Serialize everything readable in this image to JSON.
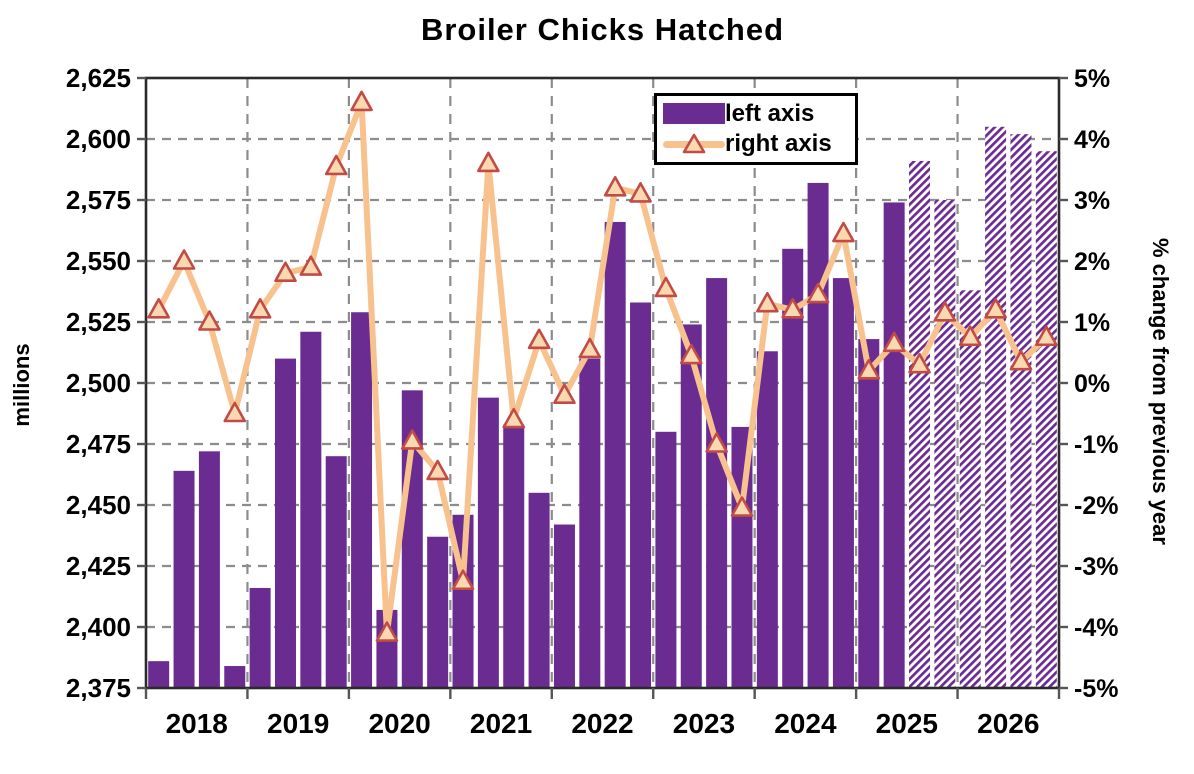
{
  "title": "Broiler Chicks Hatched",
  "left_axis": {
    "label": "millions",
    "ticks": [
      "2,625",
      "2,600",
      "2,575",
      "2,550",
      "2,525",
      "2,500",
      "2,475",
      "2,450",
      "2,425",
      "2,400",
      "2,375"
    ],
    "min": 2375,
    "max": 2625,
    "step": 25
  },
  "right_axis": {
    "label": "% change from previous year",
    "ticks": [
      "5%",
      "4%",
      "3%",
      "2%",
      "1%",
      "0%",
      "-1%",
      "-2%",
      "-3%",
      "-4%",
      "-5%"
    ],
    "min": -5,
    "max": 5,
    "step": 1
  },
  "x_axis": {
    "years": [
      "2018",
      "2019",
      "2020",
      "2021",
      "2022",
      "2023",
      "2024",
      "2025",
      "2026"
    ],
    "frequency": "quarterly"
  },
  "legend": {
    "items": [
      {
        "label": "left axis",
        "swatch": "purple-bar"
      },
      {
        "label": "right axis",
        "swatch": "peach-line-triangle-marker"
      }
    ]
  },
  "colors": {
    "bar_purple": "#6B2C91",
    "line_peach": "#F8C28E",
    "marker_fill": "#FBD9B0",
    "marker_stroke": "#C24B46",
    "grid_gray": "#8c8c8c",
    "axis_border": "#2b2b2b",
    "text": "#000000"
  },
  "chart_data": {
    "type": "bar",
    "subtype": "dual-axis bar + line, quarterly",
    "title": "Broiler Chicks Hatched",
    "x_visible_labels": [
      "2018",
      "2019",
      "2020",
      "2021",
      "2022",
      "2023",
      "2024",
      "2025",
      "2026"
    ],
    "quarters": [
      "2018Q1",
      "2018Q2",
      "2018Q3",
      "2018Q4",
      "2019Q1",
      "2019Q2",
      "2019Q3",
      "2019Q4",
      "2020Q1",
      "2020Q2",
      "2020Q3",
      "2020Q4",
      "2021Q1",
      "2021Q2",
      "2021Q3",
      "2021Q4",
      "2022Q1",
      "2022Q2",
      "2022Q3",
      "2022Q4",
      "2023Q1",
      "2023Q2",
      "2023Q3",
      "2023Q4",
      "2024Q1",
      "2024Q2",
      "2024Q3",
      "2024Q4",
      "2025Q1",
      "2025Q2",
      "2025Q3",
      "2025Q4",
      "2026Q1",
      "2026Q2",
      "2026Q3",
      "2026Q4"
    ],
    "series": [
      {
        "name": "left axis",
        "type": "bar",
        "axis": "left",
        "unit": "millions",
        "values": [
          2386,
          2464,
          2472,
          2384,
          2416,
          2510,
          2521,
          2470,
          2529,
          2407,
          2497,
          2437,
          2446,
          2494,
          2483,
          2455,
          2442,
          2510,
          2566,
          2533,
          2480,
          2524,
          2543,
          2482,
          2513,
          2555,
          2582,
          2543,
          2518,
          2574,
          2591,
          2575,
          2538,
          2605,
          2602,
          2595
        ],
        "hatched_from_index": 30,
        "hatched_quarter_start": "2025Q3"
      },
      {
        "name": "right axis",
        "type": "line",
        "axis": "right",
        "unit": "% change from previous year",
        "marker": "triangle",
        "values": [
          1.2,
          2.0,
          1.0,
          -0.5,
          1.2,
          1.8,
          1.9,
          3.55,
          4.6,
          -4.1,
          -0.95,
          -1.45,
          -3.25,
          3.6,
          -0.6,
          0.7,
          -0.2,
          0.55,
          3.2,
          3.1,
          1.55,
          0.45,
          -1.0,
          -2.05,
          1.3,
          1.2,
          1.45,
          2.45,
          0.2,
          0.65,
          0.3,
          1.15,
          0.75,
          1.2,
          0.35,
          0.75
        ]
      }
    ],
    "ylim_left": [
      2375,
      2625
    ],
    "ylim_right": [
      -5,
      5
    ],
    "grid": "dashed gray, horizontal every 25 (left) / 1% (right), vertical at year boundaries",
    "legend_position": "top, inside plot, left of right edge"
  }
}
